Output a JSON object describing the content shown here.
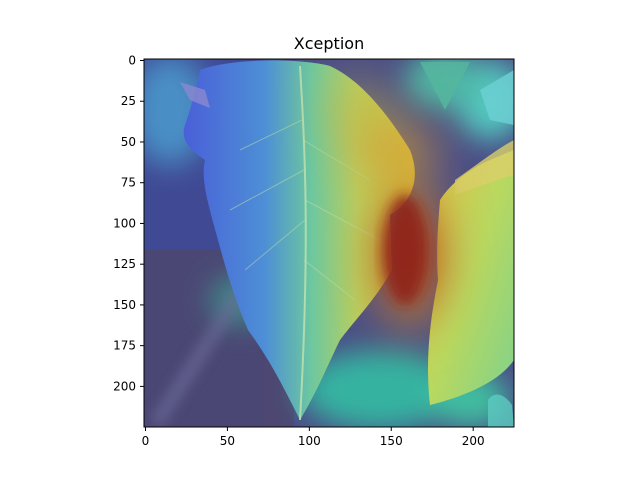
{
  "title": "Xception",
  "x_axis": {
    "ticks": [
      0,
      50,
      100,
      150,
      200
    ],
    "range": [
      0,
      224
    ]
  },
  "y_axis": {
    "ticks": [
      0,
      25,
      50,
      75,
      100,
      125,
      150,
      175,
      200
    ],
    "range": [
      0,
      224
    ]
  },
  "image": {
    "subject": "tomato-leaf-with-gradcam-heatmap-overlay",
    "colormap": "jet"
  }
}
